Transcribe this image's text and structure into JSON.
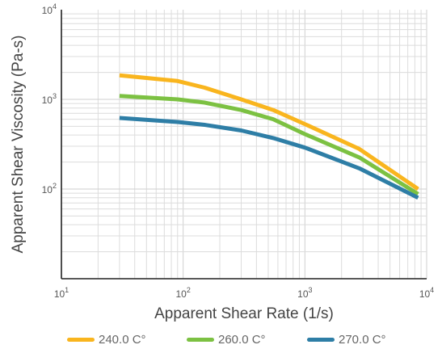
{
  "chart_data": {
    "type": "line",
    "x_scale": "log",
    "y_scale": "log",
    "xlim": [
      10,
      10000
    ],
    "ylim": [
      10,
      10000
    ],
    "xlabel": "Apparent Shear Rate (1/s)",
    "ylabel": "Apparent Shear Viscosity (Pa-s)",
    "x_ticks": [
      {
        "value": 10,
        "base": "10",
        "exp": "1"
      },
      {
        "value": 100,
        "base": "10",
        "exp": "2"
      },
      {
        "value": 1000,
        "base": "10",
        "exp": "3"
      },
      {
        "value": 10000,
        "base": "10",
        "exp": "4"
      }
    ],
    "y_ticks": [
      {
        "value": 100,
        "base": "10",
        "exp": "2"
      },
      {
        "value": 1000,
        "base": "10",
        "exp": "3"
      },
      {
        "value": 10000,
        "base": "10",
        "exp": "4"
      }
    ],
    "grid": true,
    "legend_position": "bottom",
    "series": [
      {
        "name": "240.0 C°",
        "color": "#f9b51e",
        "points": [
          [
            30,
            1850
          ],
          [
            90,
            1600
          ],
          [
            150,
            1350
          ],
          [
            300,
            1000
          ],
          [
            550,
            760
          ],
          [
            1000,
            530
          ],
          [
            2800,
            280
          ],
          [
            8500,
            100
          ]
        ]
      },
      {
        "name": "260.0 C°",
        "color": "#7cc142",
        "points": [
          [
            30,
            1090
          ],
          [
            90,
            1000
          ],
          [
            150,
            920
          ],
          [
            300,
            760
          ],
          [
            550,
            600
          ],
          [
            1000,
            410
          ],
          [
            2800,
            225
          ],
          [
            8500,
            88
          ]
        ]
      },
      {
        "name": "270.0 C°",
        "color": "#2e7ea6",
        "points": [
          [
            30,
            620
          ],
          [
            90,
            560
          ],
          [
            150,
            520
          ],
          [
            300,
            450
          ],
          [
            550,
            370
          ],
          [
            1000,
            290
          ],
          [
            2800,
            170
          ],
          [
            8500,
            80
          ]
        ]
      }
    ]
  }
}
